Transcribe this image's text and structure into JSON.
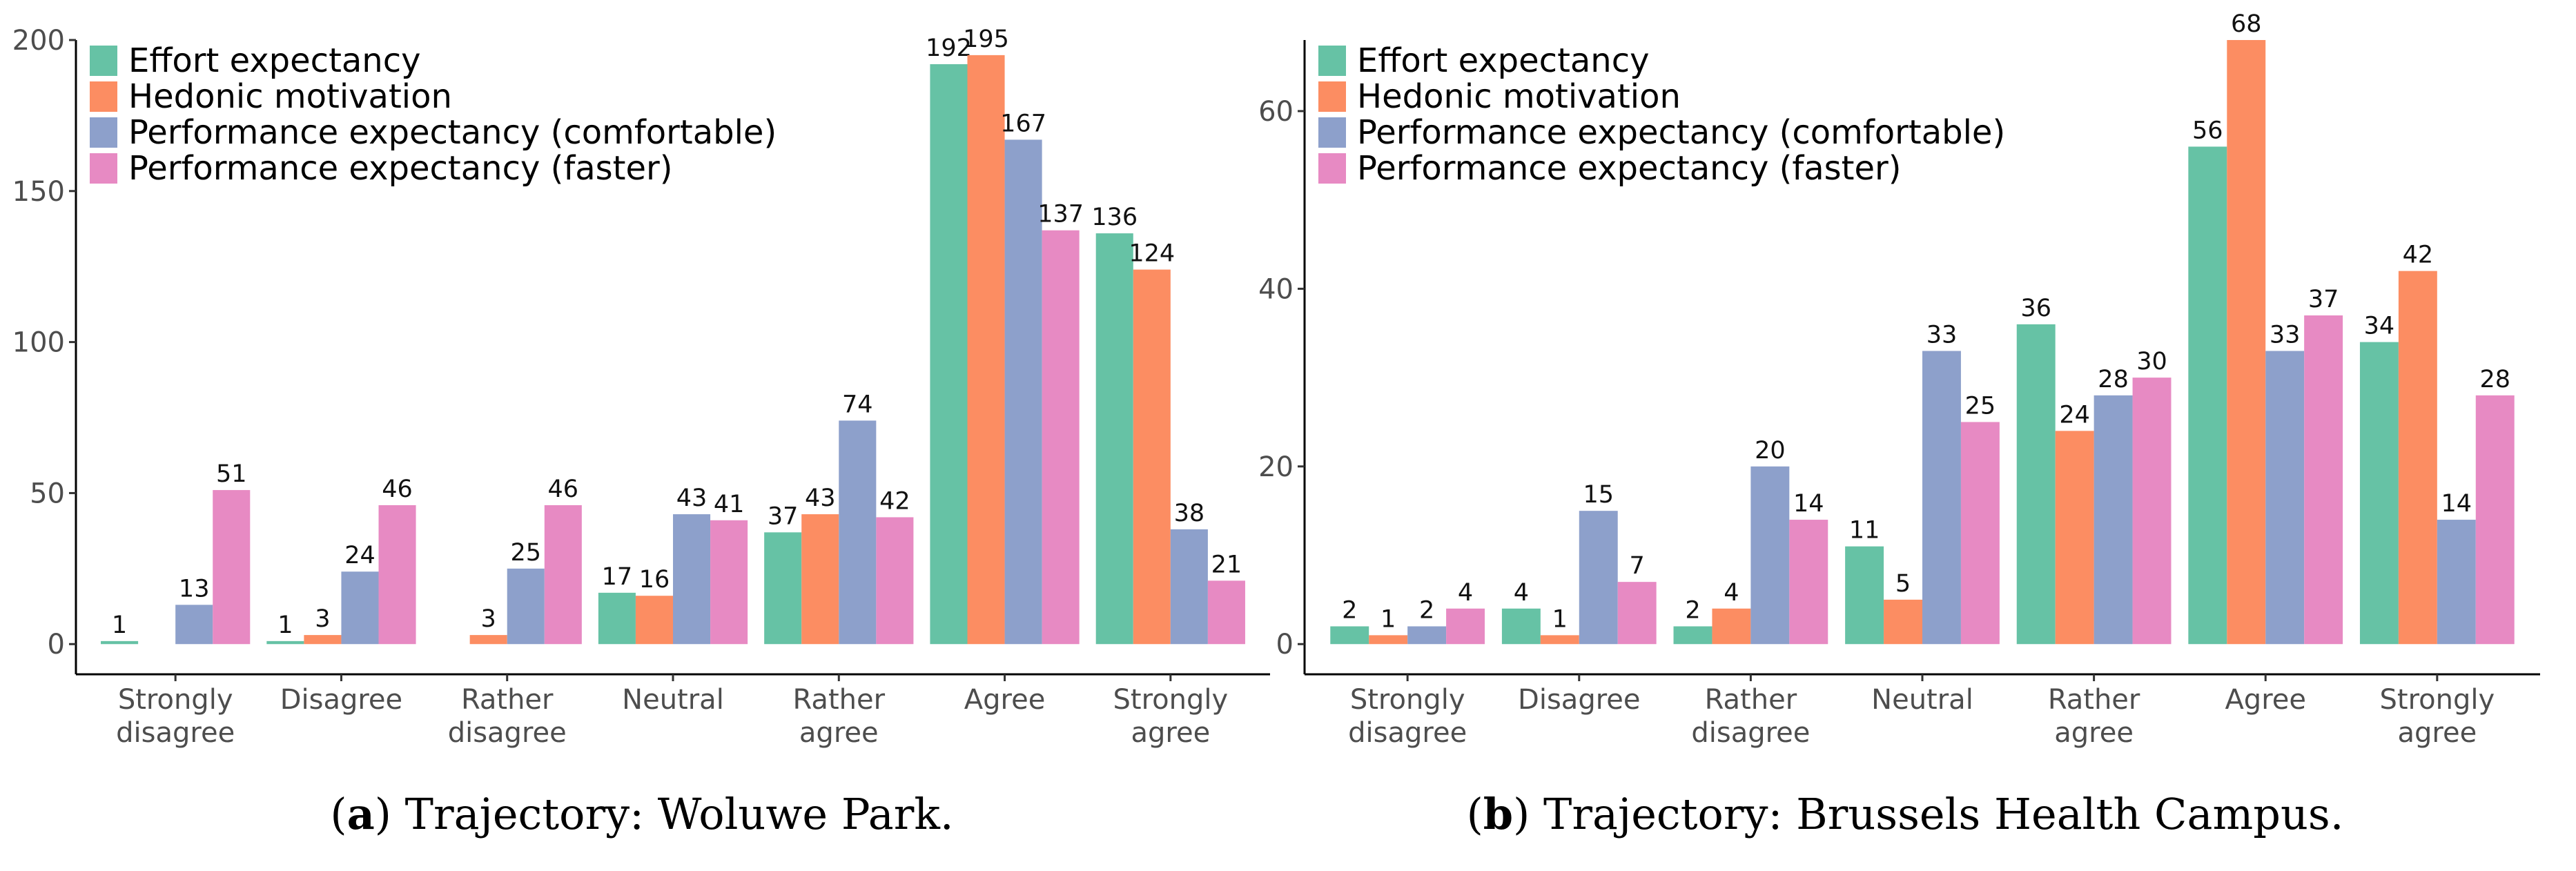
{
  "legend": [
    {
      "name": "Effort expectancy",
      "color": "#66c2a5"
    },
    {
      "name": "Hedonic motivation",
      "color": "#fc8d62"
    },
    {
      "name": "Performance expectancy (comfortable)",
      "color": "#8da0cb"
    },
    {
      "name": "Performance expectancy (faster)",
      "color": "#e78ac3"
    }
  ],
  "captions": {
    "a_letter": "a",
    "a_text": "Trajectory: Woluwe Park.",
    "b_letter": "b",
    "b_text": "Trajectory: Brussels Health Campus."
  },
  "chart_data": [
    {
      "id": "a",
      "type": "bar",
      "title": "Trajectory: Woluwe Park.",
      "xlabel": "",
      "ylabel": "",
      "categories": [
        [
          "Strongly",
          "disagree"
        ],
        [
          "Disagree"
        ],
        [
          "Rather",
          "disagree"
        ],
        [
          "Neutral"
        ],
        [
          "Rather",
          "agree"
        ],
        [
          "Agree"
        ],
        [
          "Strongly",
          "agree"
        ]
      ],
      "ylim": [
        -10,
        200
      ],
      "yticks": [
        0,
        50,
        100,
        150,
        200
      ],
      "legend_position": "top-left",
      "series": [
        {
          "name": "Effort expectancy",
          "values": [
            1,
            1,
            0,
            17,
            37,
            192,
            136
          ]
        },
        {
          "name": "Hedonic motivation",
          "values": [
            0,
            3,
            3,
            16,
            43,
            195,
            124
          ]
        },
        {
          "name": "Performance expectancy (comfortable)",
          "values": [
            13,
            24,
            25,
            43,
            74,
            167,
            38
          ]
        },
        {
          "name": "Performance expectancy (faster)",
          "values": [
            51,
            46,
            46,
            41,
            42,
            137,
            21
          ]
        }
      ]
    },
    {
      "id": "b",
      "type": "bar",
      "title": "Trajectory: Brussels Health Campus.",
      "xlabel": "",
      "ylabel": "",
      "categories": [
        [
          "Strongly",
          "disagree"
        ],
        [
          "Disagree"
        ],
        [
          "Rather",
          "disagree"
        ],
        [
          "Neutral"
        ],
        [
          "Rather",
          "agree"
        ],
        [
          "Agree"
        ],
        [
          "Strongly",
          "agree"
        ]
      ],
      "ylim": [
        -3.4,
        68
      ],
      "yticks": [
        0,
        20,
        40,
        60
      ],
      "legend_position": "top-left",
      "series": [
        {
          "name": "Effort expectancy",
          "values": [
            2,
            4,
            2,
            11,
            36,
            56,
            34
          ]
        },
        {
          "name": "Hedonic motivation",
          "values": [
            1,
            1,
            4,
            5,
            24,
            68,
            42
          ]
        },
        {
          "name": "Performance expectancy (comfortable)",
          "values": [
            2,
            15,
            20,
            33,
            28,
            33,
            14
          ]
        },
        {
          "name": "Performance expectancy (faster)",
          "values": [
            4,
            7,
            14,
            25,
            30,
            37,
            28
          ]
        }
      ]
    }
  ]
}
